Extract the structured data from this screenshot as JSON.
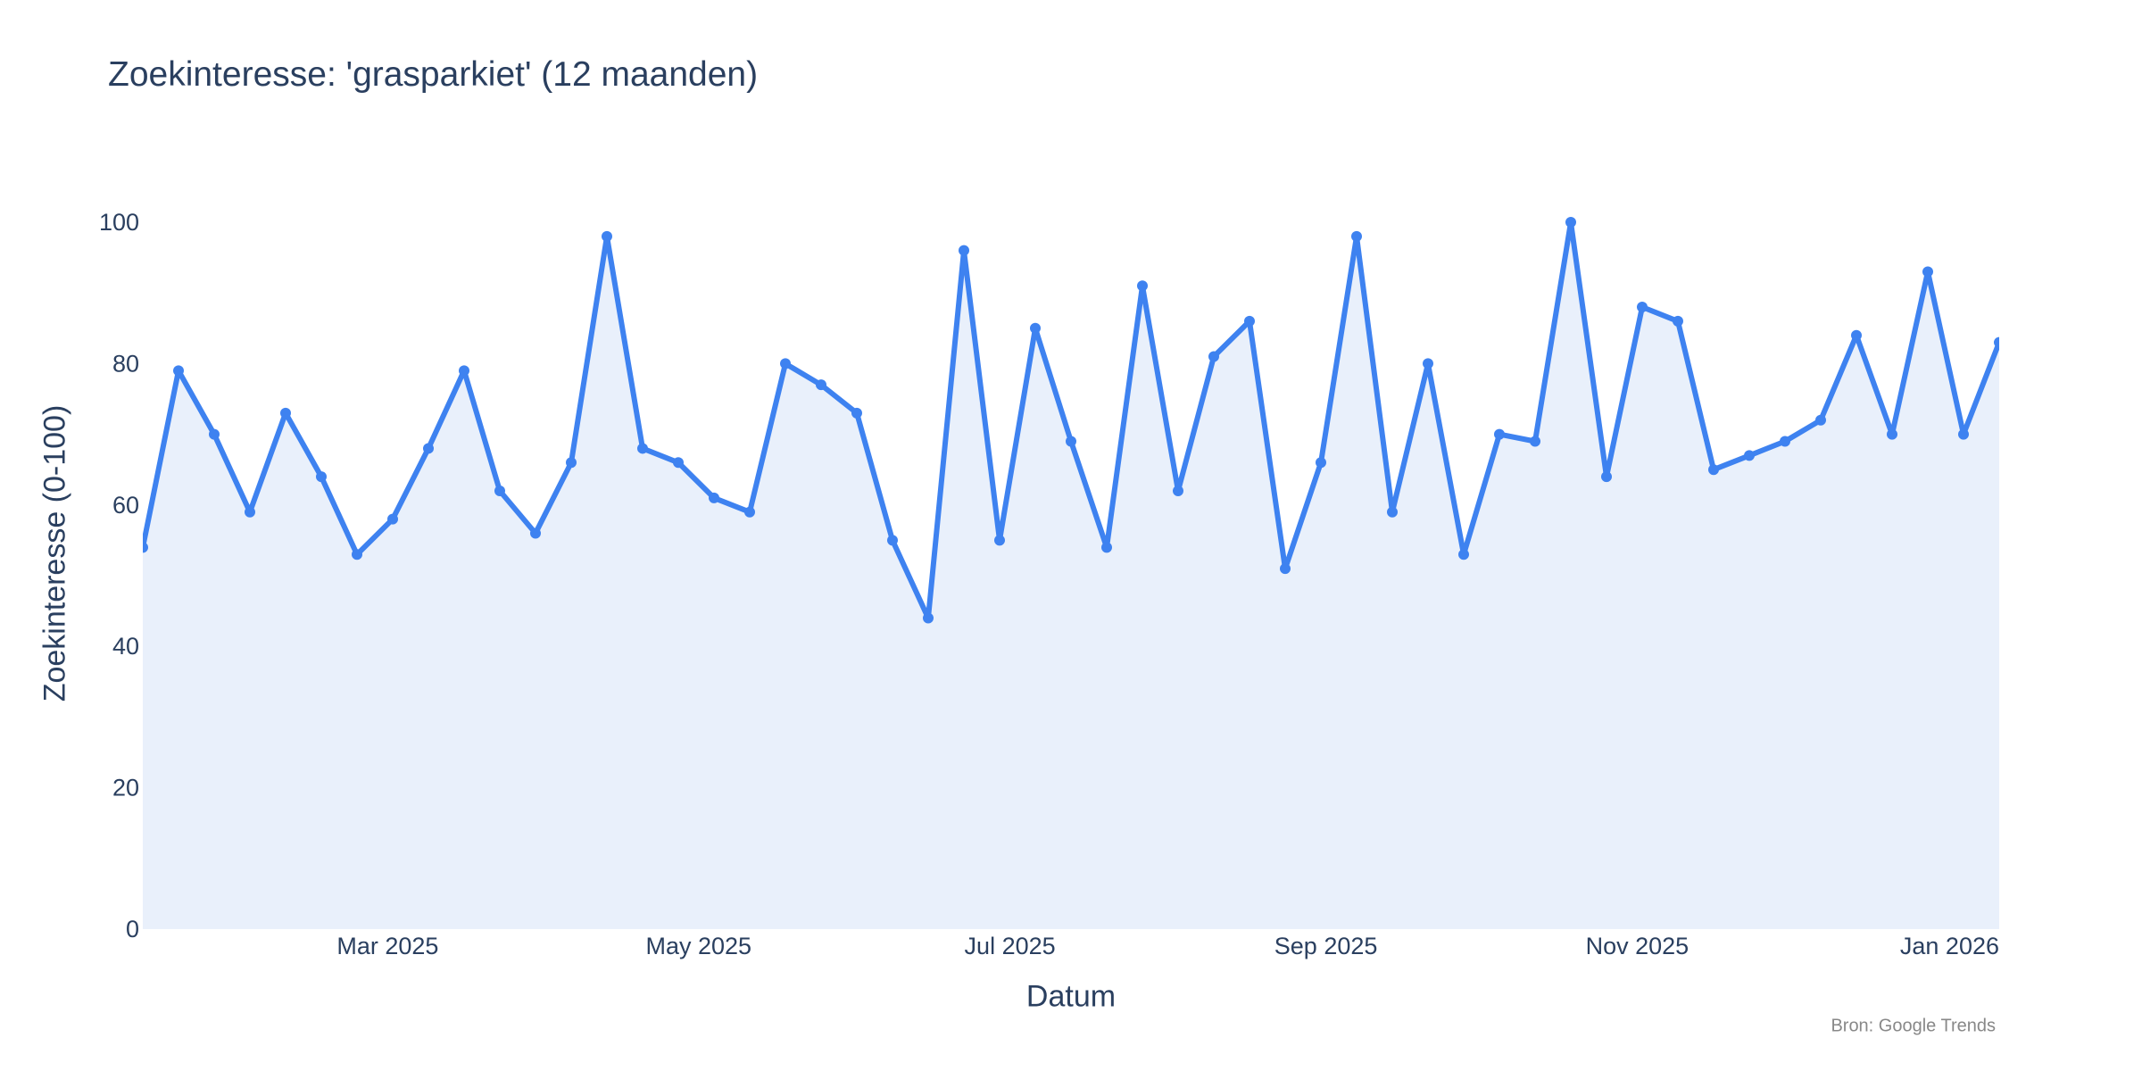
{
  "chart": {
    "title": "Zoekinteresse: 'grasparkiet' (12 maanden)",
    "xlabel": "Datum",
    "ylabel": "Zoekinteresse (0-100)",
    "source": "Bron: Google Trends",
    "colors": {
      "line": "#3e82f0",
      "fill": "#e9f0fb",
      "text": "#2a3f5f",
      "source_text": "#888888",
      "background": "#ffffff"
    }
  },
  "chart_data": {
    "type": "area",
    "title": "Zoekinteresse: 'grasparkiet' (12 maanden)",
    "xlabel": "Datum",
    "ylabel": "Zoekinteresse (0-100)",
    "ylim": [
      0,
      100
    ],
    "y_ticks": [
      0,
      20,
      40,
      60,
      80,
      100
    ],
    "x_tick_labels": [
      "Mar 2025",
      "May 2025",
      "Jul 2025",
      "Sep 2025",
      "Nov 2025",
      "Jan 2026"
    ],
    "x_tick_positions_weeks": [
      6.86,
      15.57,
      24.29,
      33.14,
      41.86,
      50.57
    ],
    "grid": false,
    "legend": "none",
    "frequency": "weekly",
    "markers": true,
    "fill": "tozeroy",
    "x": [
      "2025-01-12",
      "2025-01-19",
      "2025-01-26",
      "2025-02-02",
      "2025-02-09",
      "2025-02-16",
      "2025-02-23",
      "2025-03-02",
      "2025-03-09",
      "2025-03-16",
      "2025-03-23",
      "2025-03-30",
      "2025-04-06",
      "2025-04-13",
      "2025-04-20",
      "2025-04-27",
      "2025-05-04",
      "2025-05-11",
      "2025-05-18",
      "2025-05-25",
      "2025-06-01",
      "2025-06-08",
      "2025-06-15",
      "2025-06-22",
      "2025-06-29",
      "2025-07-06",
      "2025-07-13",
      "2025-07-20",
      "2025-07-27",
      "2025-08-03",
      "2025-08-10",
      "2025-08-17",
      "2025-08-24",
      "2025-08-31",
      "2025-09-07",
      "2025-09-14",
      "2025-09-21",
      "2025-09-28",
      "2025-10-05",
      "2025-10-12",
      "2025-10-19",
      "2025-10-26",
      "2025-11-02",
      "2025-11-09",
      "2025-11-16",
      "2025-11-23",
      "2025-11-30",
      "2025-12-07",
      "2025-12-14",
      "2025-12-21",
      "2025-12-28",
      "2026-01-04",
      "2026-01-11"
    ],
    "series": [
      {
        "name": "grasparkiet",
        "values": [
          54,
          79,
          70,
          59,
          73,
          64,
          53,
          58,
          68,
          79,
          62,
          56,
          66,
          98,
          68,
          66,
          61,
          59,
          80,
          77,
          73,
          55,
          44,
          96,
          55,
          85,
          69,
          54,
          91,
          62,
          81,
          86,
          51,
          66,
          98,
          59,
          80,
          53,
          70,
          69,
          100,
          64,
          88,
          86,
          65,
          67,
          69,
          72,
          84,
          70,
          93,
          70,
          83
        ]
      }
    ]
  }
}
